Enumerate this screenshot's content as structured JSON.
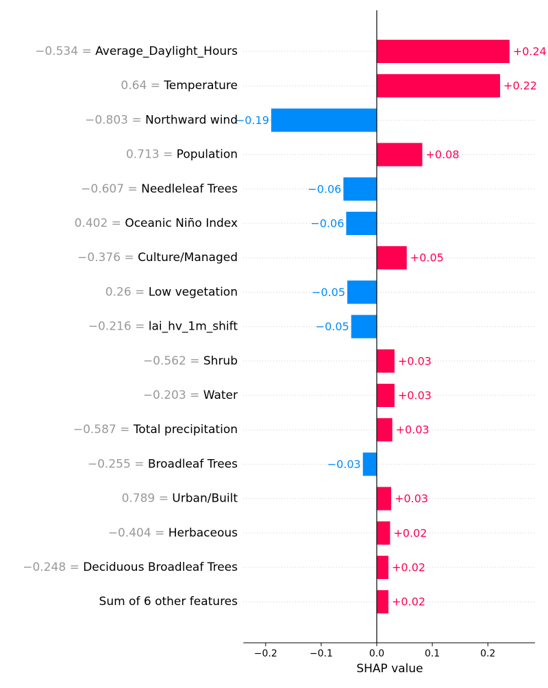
{
  "chart_data": {
    "type": "bar",
    "orientation": "horizontal",
    "xlabel": "SHAP value",
    "xlim": [
      -0.24,
      0.285
    ],
    "xticks": [
      {
        "value": -0.2,
        "label": "−0.2"
      },
      {
        "value": -0.1,
        "label": "−0.1"
      },
      {
        "value": 0.0,
        "label": "0.0"
      },
      {
        "value": 0.1,
        "label": "0.1"
      },
      {
        "value": 0.2,
        "label": "0.2"
      }
    ],
    "colors": {
      "positive": "#ff0051",
      "negative": "#008bfb",
      "feature_value": "#999999",
      "feature_name": "#000000"
    },
    "bars": [
      {
        "value_prefix": "−0.534 = ",
        "feature": "Average_Daylight_Hours",
        "shap": 0.239,
        "label": "+0.24"
      },
      {
        "value_prefix": "0.64 = ",
        "feature": "Temperature",
        "shap": 0.222,
        "label": "+0.22"
      },
      {
        "value_prefix": "−0.803 = ",
        "feature": "Northward wind",
        "shap": -0.19,
        "label": "−0.19"
      },
      {
        "value_prefix": "0.713 = ",
        "feature": "Population",
        "shap": 0.082,
        "label": "+0.08"
      },
      {
        "value_prefix": "−0.607 = ",
        "feature": "Needleleaf Trees",
        "shap": -0.06,
        "label": "−0.06"
      },
      {
        "value_prefix": "0.402 = ",
        "feature": "Oceanic Niño Index",
        "shap": -0.055,
        "label": "−0.06"
      },
      {
        "value_prefix": "−0.376 = ",
        "feature": "Culture/Managed",
        "shap": 0.054,
        "label": "+0.05"
      },
      {
        "value_prefix": "0.26 = ",
        "feature": "Low vegetation",
        "shap": -0.053,
        "label": "−0.05"
      },
      {
        "value_prefix": "−0.216 = ",
        "feature": "lai_hv_1m_shift",
        "shap": -0.046,
        "label": "−0.05"
      },
      {
        "value_prefix": "−0.562 = ",
        "feature": "Shrub",
        "shap": 0.032,
        "label": "+0.03"
      },
      {
        "value_prefix": "−0.203 = ",
        "feature": "Water",
        "shap": 0.032,
        "label": "+0.03"
      },
      {
        "value_prefix": "−0.587 = ",
        "feature": "Total precipitation",
        "shap": 0.028,
        "label": "+0.03"
      },
      {
        "value_prefix": "−0.255 = ",
        "feature": "Broadleaf Trees",
        "shap": -0.025,
        "label": "−0.03"
      },
      {
        "value_prefix": "0.789 = ",
        "feature": "Urban/Built",
        "shap": 0.026,
        "label": "+0.03"
      },
      {
        "value_prefix": "−0.404 = ",
        "feature": "Herbaceous",
        "shap": 0.024,
        "label": "+0.02"
      },
      {
        "value_prefix": "−0.248 = ",
        "feature": "Deciduous Broadleaf Trees",
        "shap": 0.021,
        "label": "+0.02"
      },
      {
        "value_prefix": "",
        "feature": "Sum of 6 other features",
        "shap": 0.021,
        "label": "+0.02"
      }
    ]
  }
}
